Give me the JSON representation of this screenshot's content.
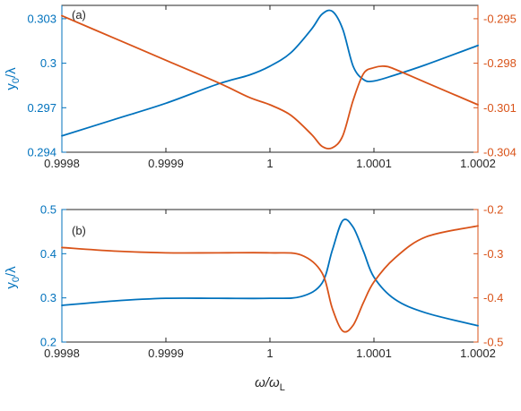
{
  "chart_data": [
    {
      "type": "line",
      "panel_label": "(a)",
      "ylabel_left": "y",
      "ylabel_left_sub": "0",
      "ylabel_left_rest": "/λ",
      "ylabel_right": "",
      "xlim": [
        0.9998,
        1.0002
      ],
      "xticks": [
        0.9998,
        0.9999,
        1.0,
        1.0001,
        1.0002
      ],
      "xtick_labels": [
        "0.9998",
        "0.9999",
        "1",
        "1.0001",
        "1.0002"
      ],
      "ylim_left": [
        0.294,
        0.3039
      ],
      "yticks_left": [
        0.294,
        0.297,
        0.3,
        0.303
      ],
      "ytick_labels_left": [
        "0.294",
        "0.297",
        "0.3",
        "0.303"
      ],
      "ylim_right": [
        -0.304,
        -0.2941
      ],
      "yticks_right": [
        -0.304,
        -0.301,
        -0.298,
        -0.295
      ],
      "ytick_labels_right": [
        "-0.304",
        "-0.301",
        "-0.298",
        "-0.295"
      ],
      "grid": false,
      "series": [
        {
          "axis": "left",
          "color": "#0072BD",
          "x": [
            0.9998,
            0.99985,
            0.9999,
            0.99995,
            0.99998,
            1.0,
            1.00002,
            1.00004,
            1.00005,
            1.00006,
            1.00007,
            1.00008,
            1.00009,
            1.0001,
            1.00012,
            1.00015,
            1.0002
          ],
          "y": [
            0.2951,
            0.2962,
            0.2973,
            0.2986,
            0.2992,
            0.2998,
            0.3007,
            0.3023,
            0.3033,
            0.3035,
            0.3023,
            0.2998,
            0.2989,
            0.2988,
            0.2992,
            0.2999,
            0.3012
          ]
        },
        {
          "axis": "right",
          "color": "#D95319",
          "x": [
            0.9998,
            0.99985,
            0.9999,
            0.99995,
            0.99998,
            1.0,
            1.00002,
            1.00004,
            1.00005,
            1.00006,
            1.00007,
            1.00008,
            1.00009,
            1.0001,
            1.00011,
            1.00012,
            1.00015,
            1.0002
          ],
          "y": [
            -0.2948,
            -0.2963,
            -0.2978,
            -0.2993,
            -0.3003,
            -0.3008,
            -0.3015,
            -0.3028,
            -0.3036,
            -0.3037,
            -0.3029,
            -0.3005,
            -0.2987,
            -0.2983,
            -0.2982,
            -0.2984,
            -0.2993,
            -0.3008
          ]
        }
      ]
    },
    {
      "type": "line",
      "panel_label": "(b)",
      "ylabel_left": "y",
      "ylabel_left_sub": "0",
      "ylabel_left_rest": "/λ",
      "ylabel_right": "",
      "xlabel_main": "ω/ω",
      "xlabel_sub": "L",
      "xlim": [
        0.9998,
        1.0002
      ],
      "xticks": [
        0.9998,
        0.9999,
        1.0,
        1.0001,
        1.0002
      ],
      "xtick_labels": [
        "0.9998",
        "0.9999",
        "1",
        "1.0001",
        "1.0002"
      ],
      "ylim_left": [
        0.2,
        0.5
      ],
      "yticks_left": [
        0.2,
        0.3,
        0.4,
        0.5
      ],
      "ytick_labels_left": [
        "0.2",
        "0.3",
        "0.4",
        "0.5"
      ],
      "ylim_right": [
        -0.5,
        -0.2
      ],
      "yticks_right": [
        -0.5,
        -0.4,
        -0.3,
        -0.2
      ],
      "ytick_labels_right": [
        "-0.5",
        "-0.4",
        "-0.3",
        "-0.2"
      ],
      "grid": false,
      "series": [
        {
          "axis": "left",
          "color": "#0072BD",
          "x": [
            0.9998,
            0.99985,
            0.9999,
            0.99995,
            1.0,
            1.00003,
            1.00005,
            1.00006,
            1.00007,
            1.00008,
            1.00009,
            1.0001,
            1.00012,
            1.00015,
            1.0002
          ],
          "y": [
            0.283,
            0.293,
            0.299,
            0.299,
            0.299,
            0.303,
            0.333,
            0.408,
            0.475,
            0.46,
            0.405,
            0.347,
            0.297,
            0.266,
            0.237
          ]
        },
        {
          "axis": "right",
          "color": "#D95319",
          "x": [
            0.9998,
            0.99985,
            0.9999,
            0.99995,
            1.0,
            1.00003,
            1.00005,
            1.00006,
            1.00007,
            1.00008,
            1.00009,
            1.0001,
            1.00012,
            1.00015,
            1.0002
          ],
          "y": [
            -0.286,
            -0.294,
            -0.298,
            -0.298,
            -0.298,
            -0.303,
            -0.343,
            -0.424,
            -0.475,
            -0.462,
            -0.41,
            -0.364,
            -0.31,
            -0.262,
            -0.237
          ]
        }
      ]
    }
  ]
}
